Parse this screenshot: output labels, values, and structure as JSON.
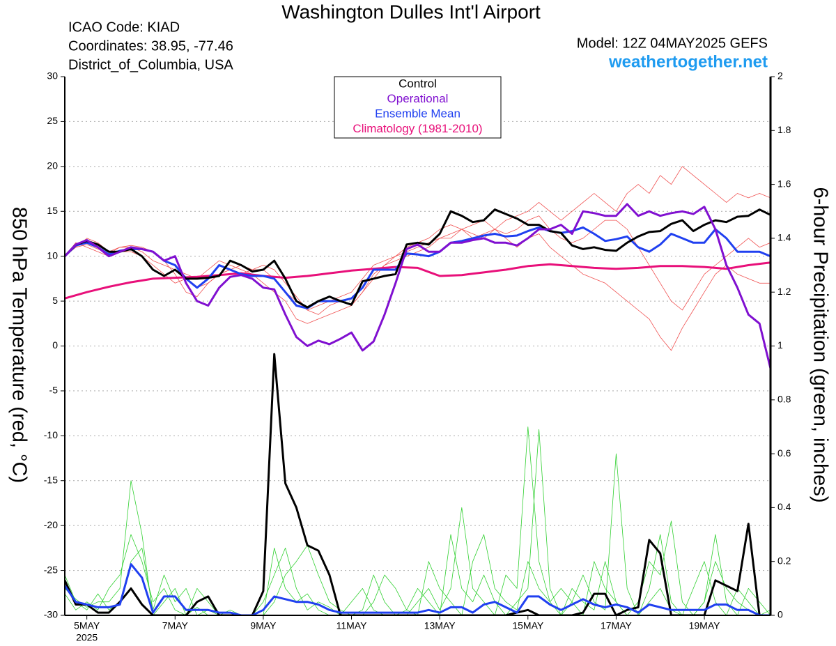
{
  "chart_data": {
    "type": "line",
    "title": "Washington Dulles Int'l Airport",
    "info": [
      "ICAO Code: KIAD",
      "Coordinates: 38.95, -77.46",
      "District_of_Columbia, USA"
    ],
    "model": "Model: 12Z 04MAY2025 GEFS",
    "source": "weathertogether.net",
    "ylabel": "850 hPa Temperature (red, °C)",
    "y2label": "6-hour Precipitation (green, inches)",
    "x": [
      0,
      6,
      12,
      18,
      24,
      30,
      36,
      42,
      48,
      54,
      60,
      66,
      72,
      78,
      84,
      90,
      96,
      102,
      108,
      114,
      120,
      126,
      132,
      138,
      144,
      150,
      156,
      162,
      168,
      174,
      180,
      186,
      192,
      198,
      204,
      210,
      216,
      222,
      228,
      234,
      240,
      246,
      252,
      258,
      264,
      270,
      276,
      282,
      288,
      294,
      300,
      306,
      312,
      318,
      324,
      330,
      336,
      342,
      348,
      354,
      360,
      366,
      372,
      378,
      384
    ],
    "xlim": [
      0,
      384
    ],
    "xticks": [
      {
        "value": 12,
        "label": "5MAY"
      },
      {
        "value": 60,
        "label": "7MAY"
      },
      {
        "value": 108,
        "label": "9MAY"
      },
      {
        "value": 156,
        "label": "11MAY"
      },
      {
        "value": 204,
        "label": "13MAY"
      },
      {
        "value": 252,
        "label": "15MAY"
      },
      {
        "value": 300,
        "label": "17MAY"
      },
      {
        "value": 348,
        "label": "19MAY"
      }
    ],
    "xtick_year": "2025",
    "ylim": [
      -30,
      30
    ],
    "yticks": [
      -30,
      -25,
      -20,
      -15,
      -10,
      -5,
      0,
      5,
      10,
      15,
      20,
      25,
      30
    ],
    "y2lim": [
      0,
      2
    ],
    "y2ticks": [
      0,
      0.2,
      0.4,
      0.6,
      0.8,
      1,
      1.2,
      1.4,
      1.6,
      1.8,
      2
    ],
    "grid": true,
    "legend": "top-center",
    "series": [
      {
        "name": "Control",
        "color": "#000000",
        "values": [
          10,
          11.3,
          11.7,
          11.3,
          10.5,
          10.5,
          10.8,
          10,
          8.5,
          7.8,
          8.5,
          7.5,
          7.5,
          7.6,
          7.8,
          9.5,
          9,
          8.3,
          8.5,
          9.5,
          7.5,
          5,
          4.3,
          5,
          5.5,
          5,
          4.6,
          7.2,
          7.5,
          7.8,
          8,
          11.3,
          11.5,
          11.3,
          12.5,
          15,
          14.5,
          13.8,
          14,
          15.2,
          14.7,
          14.2,
          13.5,
          13.5,
          12.8,
          12.6,
          11.2,
          10.8,
          11,
          10.7,
          10.6,
          11.5,
          12.2,
          12.7,
          12.8,
          13.6,
          14,
          12.8,
          13.5,
          14,
          13.8,
          14.4,
          14.5,
          15.2,
          14.6
        ]
      },
      {
        "name": "Operational",
        "color": "#8010d0",
        "values": [
          10,
          11.3,
          11.8,
          11,
          10,
          10.5,
          11,
          10.8,
          10.5,
          9.5,
          10,
          7,
          5,
          4.5,
          6.5,
          7.7,
          7.9,
          7.5,
          6.5,
          6.3,
          3.5,
          1,
          0,
          0.6,
          0.2,
          0.8,
          1.5,
          -0.5,
          0.5,
          3.5,
          7,
          10.8,
          11.3,
          10.5,
          10.5,
          11.5,
          11.5,
          11.8,
          12,
          11.5,
          11.5,
          11.2,
          12,
          13,
          13,
          13.5,
          12.5,
          15,
          14.8,
          14.5,
          14.5,
          15.8,
          14.5,
          15,
          14.5,
          14.8,
          15,
          14.7,
          15.5,
          13,
          9,
          6.5,
          3.5,
          2.5,
          -2.5
        ]
      },
      {
        "name": "Ensemble Mean",
        "color": "#2040f0",
        "values": [
          10,
          11.2,
          11.5,
          11,
          10.2,
          10.6,
          10.8,
          10.8,
          10.5,
          9.5,
          9,
          7.5,
          6.5,
          7.5,
          9,
          8.5,
          8,
          7.8,
          7.8,
          7.5,
          6,
          4.5,
          4.2,
          5,
          5,
          5,
          5.3,
          6.5,
          8.5,
          8.5,
          8.5,
          10.3,
          10.2,
          10,
          10.5,
          11.5,
          11.7,
          12,
          12.3,
          12.5,
          12.2,
          12.3,
          12.8,
          13.2,
          12.8,
          12.6,
          12.8,
          13.2,
          12.5,
          11.7,
          11.9,
          12.2,
          11,
          10.5,
          11.3,
          12.5,
          12,
          11.5,
          11.5,
          13,
          12,
          10.5,
          10.5,
          10.5,
          10
        ]
      },
      {
        "name": "Climatology (1981-2010)",
        "color": "#e8107a",
        "values": [
          5.3,
          5.65,
          6.0,
          6.3,
          6.6,
          6.85,
          7.1,
          7.3,
          7.5,
          7.55,
          7.6,
          7.65,
          7.7,
          7.8,
          7.9,
          8.0,
          8.1,
          7.95,
          7.8,
          7.7,
          7.6,
          7.7,
          7.8,
          7.95,
          8.1,
          8.25,
          8.4,
          8.5,
          8.6,
          8.7,
          8.8,
          8.75,
          8.7,
          8.25,
          7.8,
          7.85,
          7.9,
          8.05,
          8.2,
          8.35,
          8.5,
          8.7,
          8.9,
          9.0,
          9.1,
          9.0,
          8.9,
          8.8,
          8.7,
          8.65,
          8.6,
          8.65,
          8.7,
          8.8,
          8.9,
          8.9,
          8.9,
          8.85,
          8.8,
          8.7,
          8.6,
          8.8,
          9.0,
          9.15,
          9.3
        ]
      }
    ],
    "precip_series": [
      {
        "color": "#000000",
        "axis": "y2",
        "values": [
          0.13,
          0.04,
          0.04,
          0.01,
          0.01,
          0.05,
          0.1,
          0.04,
          0,
          0,
          0,
          0,
          0.05,
          0.07,
          0,
          0,
          0,
          0,
          0.09,
          0.97,
          0.49,
          0.4,
          0.26,
          0.24,
          0.15,
          0,
          0,
          0,
          0,
          0,
          0,
          0,
          0,
          0,
          0,
          0,
          0,
          0,
          0,
          0,
          0,
          0.01,
          0.02,
          0,
          0,
          0,
          0,
          0.01,
          0.08,
          0.08,
          0,
          0.02,
          0.03,
          0.28,
          0.23,
          0,
          0,
          0,
          0,
          0.13,
          0.11,
          0.09,
          0.34,
          0,
          0
        ]
      },
      {
        "color": "#2040f0",
        "axis": "y2",
        "values": [
          0.11,
          0.05,
          0.04,
          0.03,
          0.03,
          0.04,
          0.19,
          0.14,
          0.01,
          0.07,
          0.07,
          0.02,
          0.02,
          0.02,
          0.01,
          0.01,
          0,
          0,
          0.02,
          0.07,
          0.06,
          0.05,
          0.05,
          0.04,
          0.02,
          0.01,
          0.01,
          0.01,
          0.01,
          0.01,
          0.01,
          0.01,
          0.01,
          0.02,
          0.01,
          0.03,
          0.03,
          0.01,
          0.04,
          0.05,
          0.03,
          0.01,
          0.07,
          0.07,
          0.04,
          0.02,
          0.04,
          0.06,
          0.04,
          0.03,
          0.04,
          0.03,
          0.01,
          0.04,
          0.03,
          0.02,
          0.02,
          0.02,
          0.02,
          0.04,
          0.04,
          0.02,
          0.02,
          0,
          0
        ]
      }
    ],
    "members": [
      {
        "color": "#f05050",
        "values": [
          10,
          11,
          12,
          11.5,
          10.5,
          11,
          11,
          10.5,
          9.5,
          9,
          8.5,
          8,
          7.5,
          8.5,
          9.5,
          9,
          8.5,
          8,
          7,
          6,
          5,
          3,
          2.5,
          3,
          3.5,
          4,
          4.5,
          6,
          8,
          9,
          10,
          11,
          11.5,
          12,
          13,
          13.5,
          13,
          13.5,
          14,
          13,
          14,
          14.5,
          15,
          16,
          15,
          14,
          15,
          16,
          17,
          16,
          15,
          17,
          18,
          17,
          19,
          18,
          20,
          19,
          18,
          17,
          16,
          17,
          16.5,
          17,
          16.5
        ]
      },
      {
        "color": "#f05050",
        "values": [
          10,
          11.5,
          11,
          10.5,
          10,
          10.5,
          10.5,
          10,
          9,
          8,
          7,
          7.5,
          6.5,
          7,
          8,
          8.5,
          8,
          8.5,
          9,
          8.5,
          7,
          5.5,
          4,
          3.5,
          4.5,
          5,
          4.5,
          6,
          7.5,
          9,
          9.5,
          10,
          10.5,
          11,
          12,
          12.5,
          13,
          12,
          12.5,
          13,
          12,
          11,
          12,
          12.5,
          11,
          10,
          9,
          8,
          7.5,
          7,
          6,
          5,
          4,
          3,
          1,
          -0.5,
          2,
          4,
          6,
          8,
          9,
          8,
          7.5,
          7,
          7
        ]
      },
      {
        "color": "#f05050",
        "values": [
          10,
          11,
          11.3,
          10.8,
          10.3,
          11,
          11.2,
          11,
          10.5,
          9.5,
          8,
          6,
          5.5,
          7,
          8,
          8.5,
          9,
          8.5,
          8.5,
          7.5,
          6,
          5,
          4,
          4.5,
          5,
          5.5,
          6,
          7.5,
          9,
          9.5,
          10,
          10.5,
          11,
          11.5,
          12,
          12,
          13,
          12.5,
          12,
          13,
          12.5,
          13,
          14,
          14.5,
          13,
          12,
          11.5,
          12,
          13,
          14,
          14,
          13,
          11,
          9,
          7,
          5,
          4,
          6,
          8,
          9,
          10,
          11,
          12,
          11,
          11.5
        ]
      },
      {
        "color": "#30d030",
        "axis": "y2",
        "values": [
          0.1,
          0.06,
          0.03,
          0.05,
          0.05,
          0.1,
          0.5,
          0.3,
          0,
          0.05,
          0.1,
          0,
          0.03,
          0,
          0,
          0,
          0,
          0,
          0,
          0.25,
          0.1,
          0.05,
          0.08,
          0.02,
          0,
          0,
          0.05,
          0.1,
          0.02,
          0,
          0,
          0,
          0.05,
          0.1,
          0.02,
          0.1,
          0.4,
          0.1,
          0.05,
          0,
          0.15,
          0.1,
          0.7,
          0.2,
          0.05,
          0,
          0.1,
          0.05,
          0.02,
          0.2,
          0.05,
          0,
          0,
          0.1,
          0.3,
          0.05,
          0,
          0,
          0.05,
          0.2,
          0.1,
          0.05,
          0.02,
          0,
          0
        ]
      },
      {
        "color": "#30d030",
        "axis": "y2",
        "values": [
          0.08,
          0.02,
          0.05,
          0.02,
          0.1,
          0.15,
          0.3,
          0.2,
          0.05,
          0.1,
          0.02,
          0,
          0.1,
          0.05,
          0,
          0,
          0,
          0,
          0.05,
          0.15,
          0.25,
          0.1,
          0.02,
          0.05,
          0.03,
          0,
          0,
          0.02,
          0.15,
          0.05,
          0,
          0.02,
          0.1,
          0.05,
          0,
          0.3,
          0.1,
          0.05,
          0.15,
          0.05,
          0,
          0.05,
          0.1,
          0.69,
          0.1,
          0,
          0.05,
          0.15,
          0.05,
          0.02,
          0.6,
          0.1,
          0,
          0.05,
          0.1,
          0.02,
          0,
          0.1,
          0.2,
          0.05,
          0,
          0.1,
          0.05,
          0,
          0.02
        ]
      },
      {
        "color": "#30d030",
        "axis": "y2",
        "values": [
          0.15,
          0.05,
          0.02,
          0.08,
          0.02,
          0.05,
          0.2,
          0.25,
          0.02,
          0.15,
          0.05,
          0.1,
          0,
          0.02,
          0,
          0.02,
          0,
          0,
          0,
          0.05,
          0.15,
          0.2,
          0.26,
          0.15,
          0.05,
          0.02,
          0,
          0,
          0.05,
          0.15,
          0.1,
          0.02,
          0,
          0.2,
          0.1,
          0.05,
          0,
          0.2,
          0.3,
          0.1,
          0.05,
          0.02,
          0.2,
          0.1,
          0.05,
          0.1,
          0.05,
          0,
          0.2,
          0.1,
          0.05,
          0,
          0.05,
          0.2,
          0.15,
          0.35,
          0.05,
          0,
          0.05,
          0.3,
          0.05,
          0,
          0.1,
          0.05,
          0
        ]
      }
    ]
  }
}
